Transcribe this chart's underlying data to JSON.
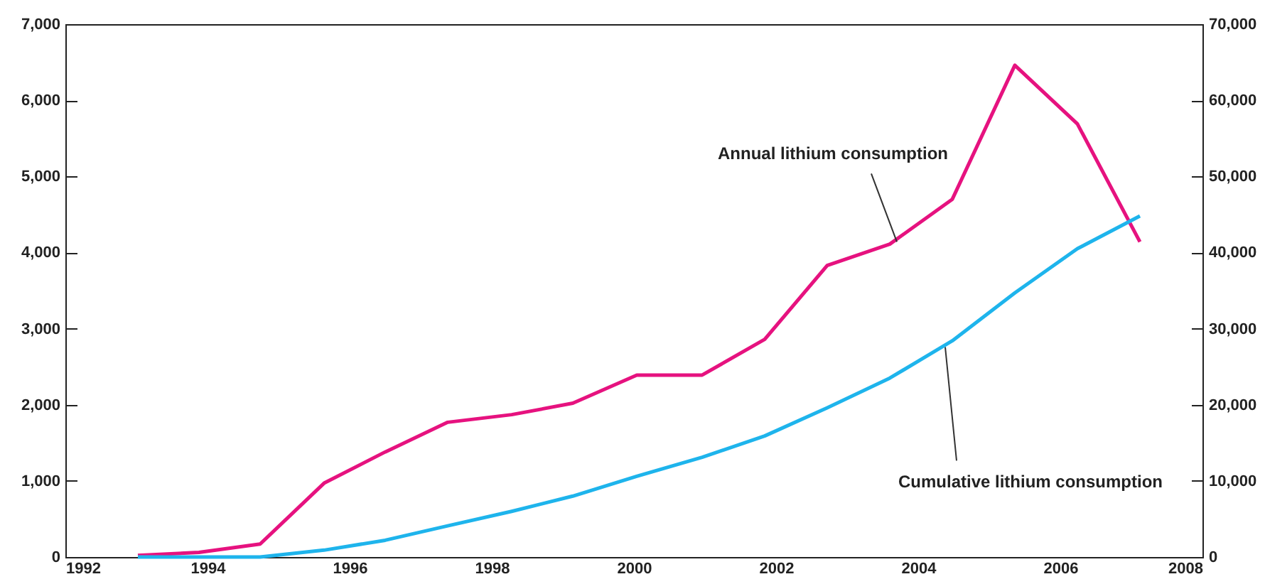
{
  "chart_data": {
    "type": "line",
    "x": [
      1993.02,
      1993.88,
      1994.74,
      1995.64,
      1996.5,
      1997.38,
      1998.28,
      1999.14,
      2000.04,
      2000.96,
      2001.84,
      2002.72,
      2003.6,
      2004.48,
      2005.36,
      2006.24,
      2007.12
    ],
    "series": [
      {
        "color": "#e6127f",
        "values": [
          20,
          60,
          170,
          970,
          1380,
          1770,
          1870,
          2020,
          2390,
          2390,
          2860,
          3830,
          4110,
          4700,
          6460,
          5690,
          4140
        ]
      },
      {
        "color": "#1eb4ec",
        "axis": "y2",
        "values": [
          0,
          0,
          0,
          900,
          2200,
          4100,
          6000,
          8000,
          10600,
          13100,
          15900,
          19600,
          23500,
          28400,
          34700,
          40500,
          44800
        ]
      }
    ],
    "xlim": [
      1992,
      2008
    ],
    "xticks": [
      1992,
      1994,
      1996,
      1998,
      2000,
      2002,
      2004,
      2006,
      2008
    ],
    "ylim": [
      0,
      7000
    ],
    "yticks": [
      0,
      {
        "value": 1000,
        "label": "1,000"
      },
      {
        "value": 2000,
        "label": "2,000"
      },
      {
        "value": 3000,
        "label": "3,000"
      },
      {
        "value": 4000,
        "label": "4,000"
      },
      {
        "value": 5000,
        "label": "5,000"
      },
      {
        "value": 6000,
        "label": "6,000"
      },
      {
        "value": 7000,
        "label": "7,000"
      }
    ],
    "y2lim": [
      0,
      70000
    ],
    "y2ticks": [
      0,
      {
        "value": 10000,
        "label": "10,000"
      },
      {
        "value": 20000,
        "label": "20,000"
      },
      {
        "value": 30000,
        "label": "30,000"
      },
      {
        "value": 40000,
        "label": "40,000"
      },
      {
        "value": 50000,
        "label": "50,000"
      },
      {
        "value": 60000,
        "label": "60,000"
      },
      {
        "value": 70000,
        "label": "70,000"
      }
    ],
    "annotations": [
      {
        "text": "Annual lithium consumption",
        "x": 2003.7,
        "y": 4140
      },
      {
        "text": "Cumulative lithium consumption",
        "x": 2004.38,
        "y": 2760
      }
    ],
    "grid": false,
    "line_style": "solid",
    "marker": "none"
  }
}
